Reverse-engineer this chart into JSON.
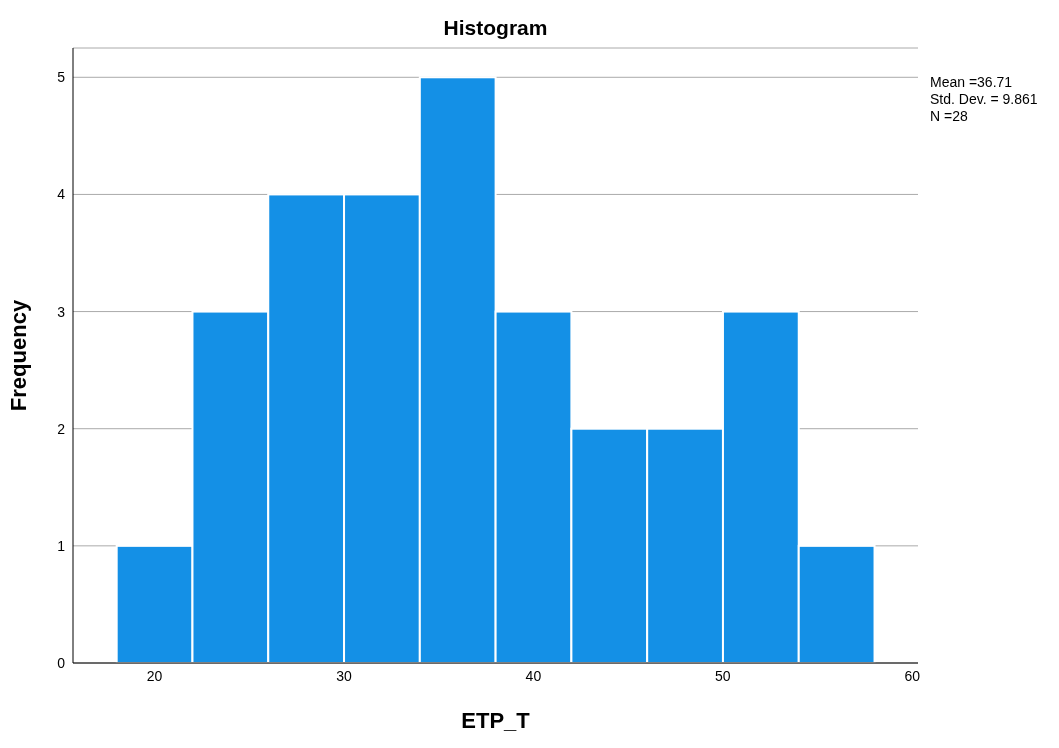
{
  "chart_data": {
    "type": "histogram",
    "title": "Histogram",
    "xlabel": "ETP_T",
    "ylabel": "Frequency",
    "bins": [
      18,
      22,
      26,
      30,
      34,
      38,
      42,
      46,
      50,
      54,
      58
    ],
    "values": [
      1,
      3,
      4,
      4,
      5,
      3,
      2,
      2,
      3,
      1
    ],
    "color": "#1490e6",
    "xlim": [
      15.7,
      60.3
    ],
    "xticks": [
      20,
      30,
      40,
      50,
      60
    ],
    "ylim": [
      0,
      5.25
    ],
    "yticks": [
      0,
      1,
      2,
      3,
      4,
      5
    ],
    "grid": "y",
    "annotations": [
      "Mean =36.71",
      "Std. Dev. = 9.861",
      "N =28"
    ]
  }
}
